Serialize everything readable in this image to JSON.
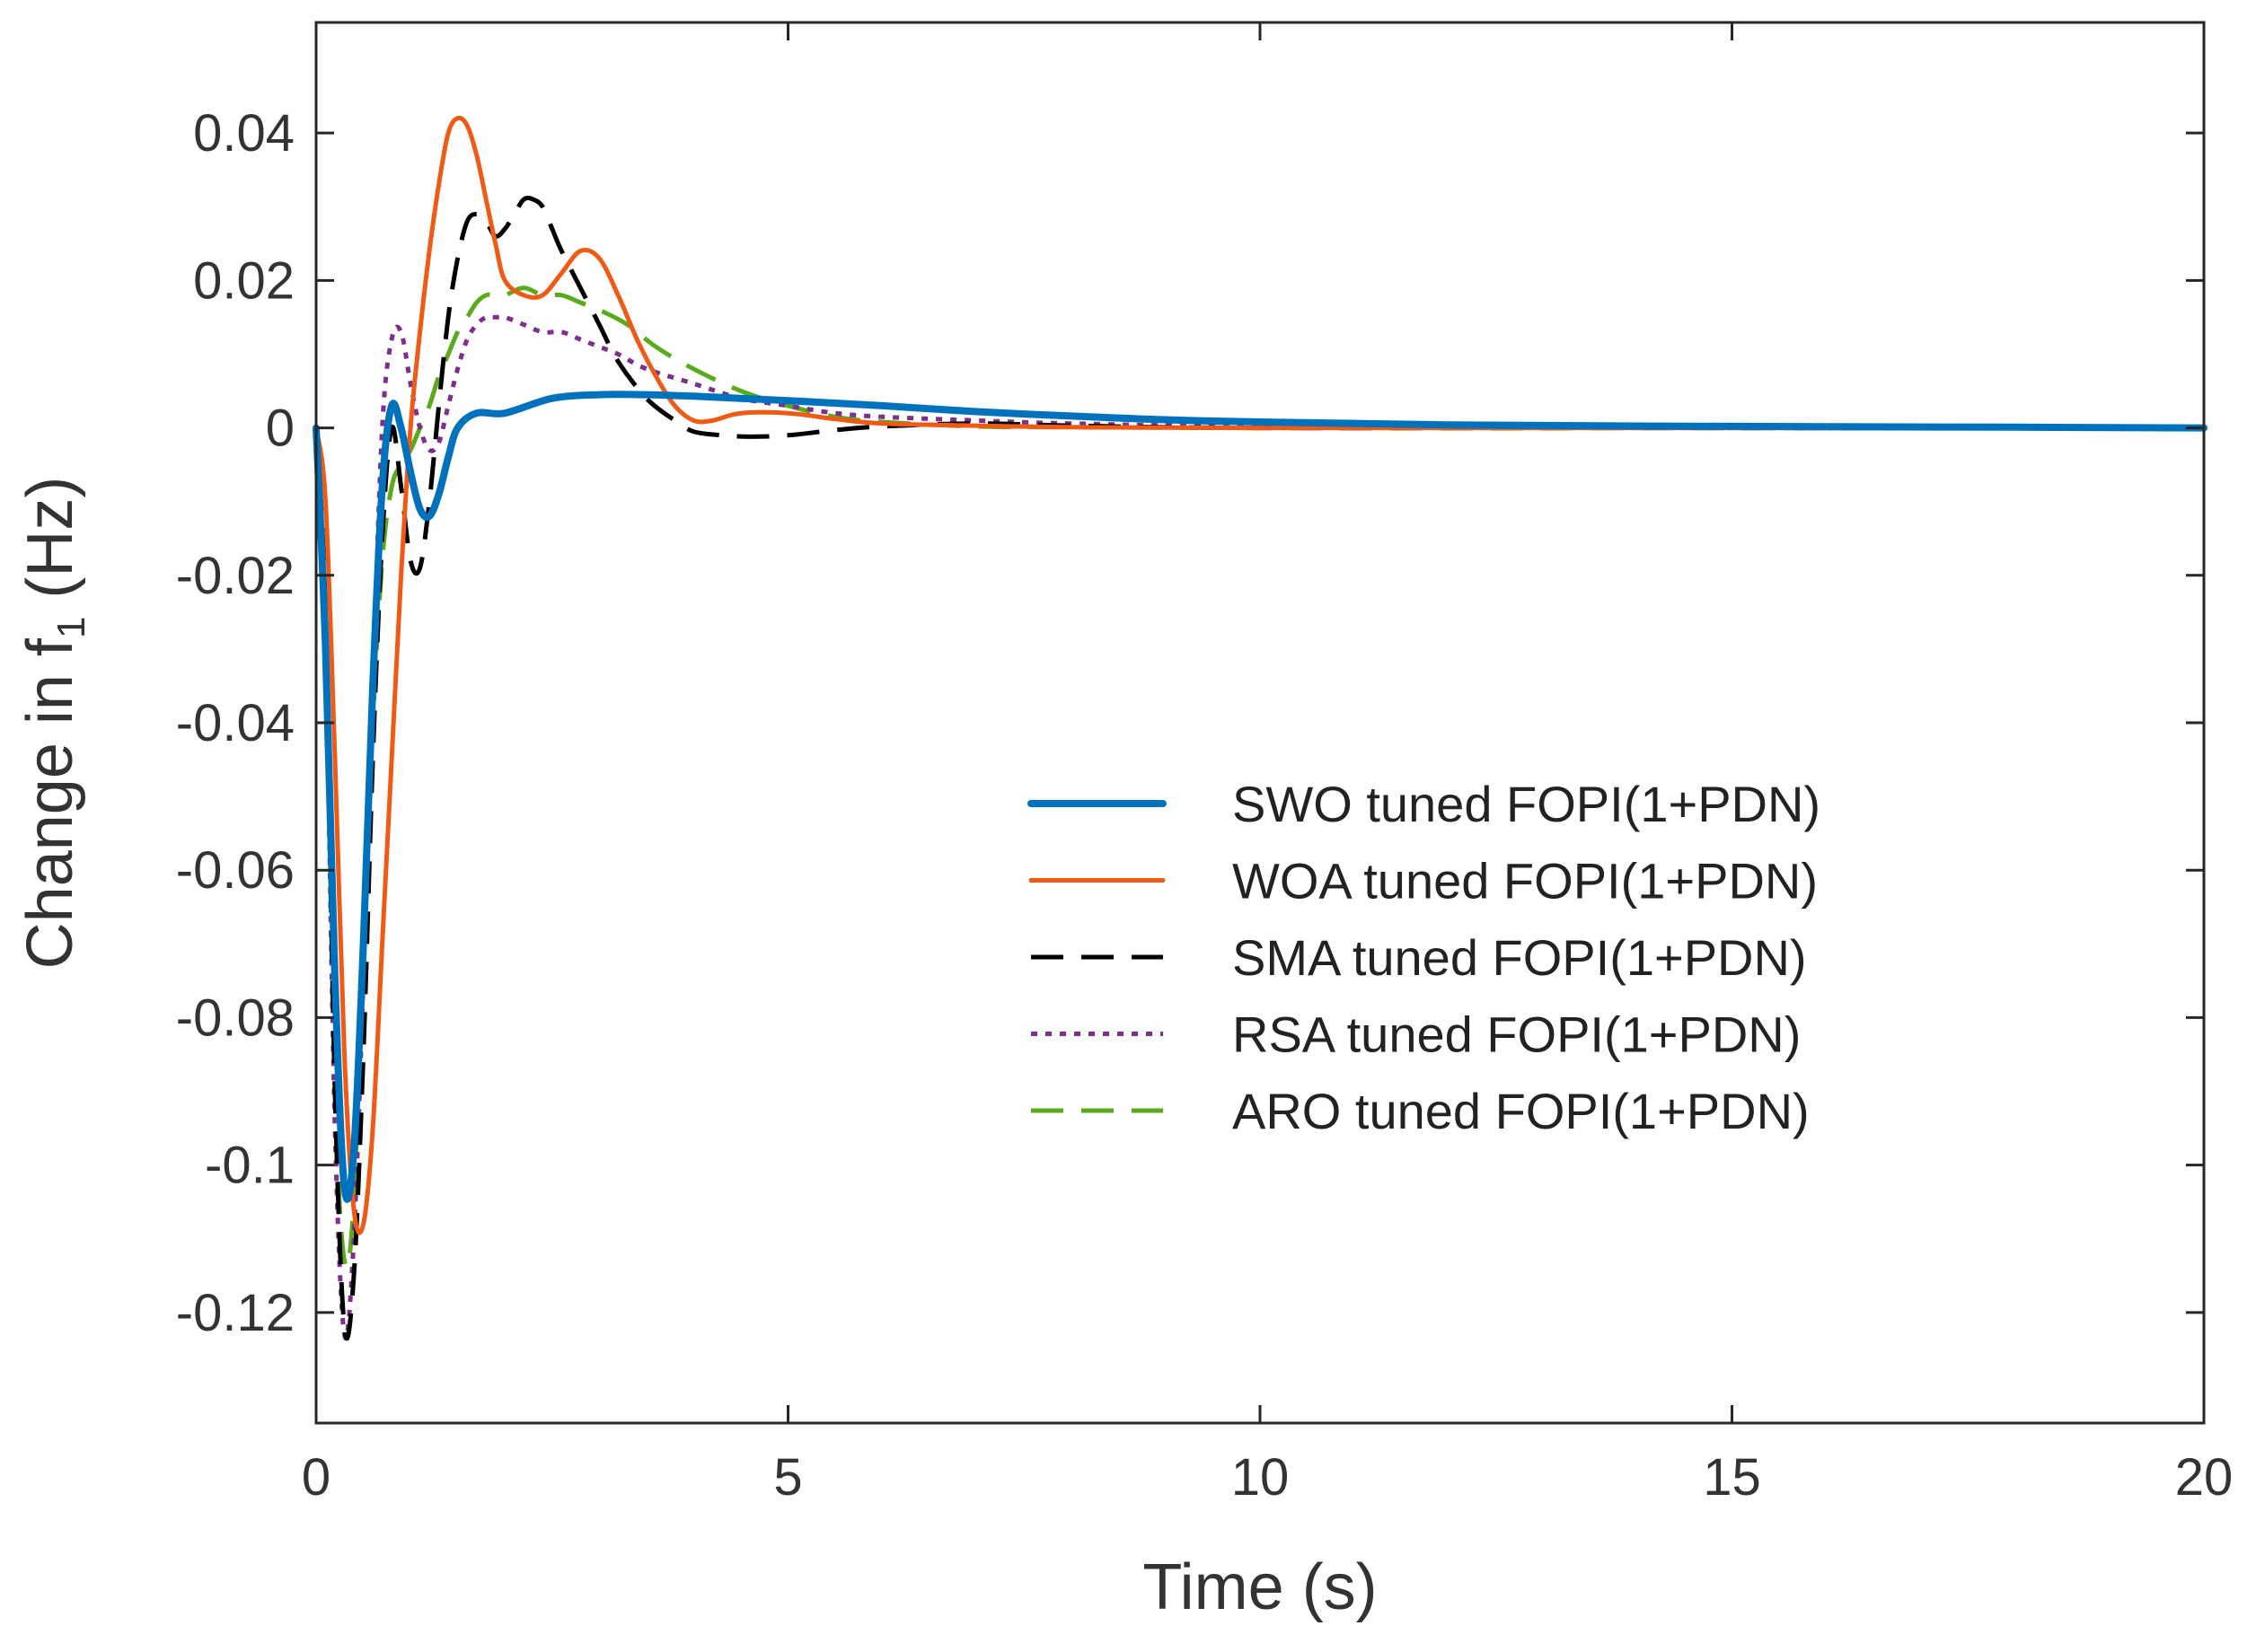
{
  "chart_data": {
    "type": "line",
    "title": "",
    "xlabel": "Time (s)",
    "ylabel_main": "Change in f",
    "ylabel_sub": "1",
    "ylabel_unit": " (Hz)",
    "xlim": [
      0,
      20
    ],
    "ylim": [
      -0.135,
      0.055
    ],
    "xticks": [
      0,
      5,
      10,
      15,
      20
    ],
    "xtick_labels": [
      "0",
      "5",
      "10",
      "15",
      "20"
    ],
    "yticks": [
      0.04,
      0.02,
      0,
      -0.02,
      -0.04,
      -0.06,
      -0.08,
      -0.1,
      -0.12
    ],
    "ytick_labels": [
      "0.04",
      "0.02",
      "0",
      "-0.02",
      "-0.04",
      "-0.06",
      "-0.08",
      "-0.1",
      "-0.12"
    ],
    "grid": false,
    "legend_position": "center-right",
    "series": [
      {
        "name": "SWO tuned FOPI(1+PDN)",
        "color": "#0072BD",
        "style": "solid-thick",
        "x": [
          0,
          0.1,
          0.2,
          0.3,
          0.4,
          0.5,
          0.6,
          0.7,
          0.8,
          0.9,
          1.0,
          1.1,
          1.2,
          1.3,
          1.4,
          1.5,
          1.7,
          2.0,
          2.5,
          3.0,
          3.5,
          4.0,
          4.5,
          5,
          6,
          7,
          8,
          9,
          10,
          12,
          15,
          18,
          20
        ],
        "y": [
          0,
          -0.03,
          -0.075,
          -0.103,
          -0.098,
          -0.07,
          -0.035,
          -0.008,
          0.003,
          0.0,
          -0.006,
          -0.011,
          -0.012,
          -0.009,
          -0.004,
          0.0,
          0.002,
          0.002,
          0.004,
          0.0045,
          0.0045,
          0.0043,
          0.004,
          0.0037,
          0.003,
          0.0022,
          0.0016,
          0.0011,
          0.0008,
          0.0004,
          0.0002,
          0.0001,
          0.0
        ]
      },
      {
        "name": "WOA tuned FOPI(1+PDN)",
        "color": "#F05A14",
        "style": "solid",
        "x": [
          0,
          0.1,
          0.2,
          0.3,
          0.4,
          0.5,
          0.6,
          0.7,
          0.8,
          0.9,
          1.0,
          1.1,
          1.2,
          1.3,
          1.4,
          1.5,
          1.6,
          1.7,
          1.8,
          1.9,
          2.0,
          2.2,
          2.4,
          2.6,
          2.8,
          3.0,
          3.2,
          3.4,
          3.6,
          3.8,
          4.0,
          4.2,
          4.5,
          5,
          5.5,
          6,
          7,
          8,
          10,
          15,
          20
        ],
        "y": [
          0,
          -0.01,
          -0.045,
          -0.085,
          -0.106,
          -0.108,
          -0.095,
          -0.07,
          -0.045,
          -0.02,
          0.0,
          0.013,
          0.024,
          0.033,
          0.04,
          0.042,
          0.041,
          0.037,
          0.031,
          0.025,
          0.02,
          0.018,
          0.018,
          0.021,
          0.024,
          0.023,
          0.018,
          0.012,
          0.007,
          0.003,
          0.001,
          0.001,
          0.002,
          0.002,
          0.0012,
          0.0006,
          0.0003,
          0.0001,
          0,
          0,
          0
        ]
      },
      {
        "name": "SMA tuned FOPI(1+PDN)",
        "color": "#000000",
        "style": "dashed",
        "x": [
          0,
          0.1,
          0.2,
          0.3,
          0.4,
          0.5,
          0.6,
          0.7,
          0.8,
          0.9,
          1.0,
          1.1,
          1.2,
          1.3,
          1.4,
          1.5,
          1.6,
          1.7,
          1.8,
          1.9,
          2.0,
          2.1,
          2.2,
          2.3,
          2.4,
          2.5,
          2.6,
          2.8,
          3.0,
          3.2,
          3.5,
          3.8,
          4.0,
          4.3,
          4.6,
          5,
          5.5,
          6,
          7,
          8,
          10,
          15,
          20
        ],
        "y": [
          0,
          -0.025,
          -0.09,
          -0.122,
          -0.115,
          -0.085,
          -0.045,
          -0.015,
          0.0,
          -0.008,
          -0.018,
          -0.019,
          -0.01,
          0.003,
          0.015,
          0.023,
          0.028,
          0.029,
          0.028,
          0.026,
          0.027,
          0.029,
          0.031,
          0.031,
          0.03,
          0.027,
          0.024,
          0.019,
          0.014,
          0.009,
          0.004,
          0.001,
          -0.0005,
          -0.001,
          -0.0012,
          -0.001,
          -0.0003,
          0.0002,
          0.0006,
          0.0003,
          0,
          0,
          0
        ]
      },
      {
        "name": "RSA tuned FOPI(1+PDN)",
        "color": "#7E2F8E",
        "style": "dotted",
        "x": [
          0,
          0.1,
          0.2,
          0.3,
          0.4,
          0.5,
          0.6,
          0.7,
          0.8,
          0.9,
          1.0,
          1.1,
          1.2,
          1.3,
          1.4,
          1.5,
          1.6,
          1.7,
          1.8,
          1.9,
          2.0,
          2.2,
          2.4,
          2.6,
          2.8,
          3.0,
          3.2,
          3.5,
          4.0,
          4.5,
          5,
          5.5,
          6,
          7,
          8,
          10,
          15,
          20
        ],
        "y": [
          0,
          -0.03,
          -0.095,
          -0.123,
          -0.11,
          -0.075,
          -0.035,
          0.0,
          0.012,
          0.013,
          0.006,
          0.0,
          -0.003,
          -0.002,
          0.003,
          0.008,
          0.012,
          0.014,
          0.015,
          0.015,
          0.015,
          0.014,
          0.013,
          0.013,
          0.012,
          0.011,
          0.01,
          0.008,
          0.006,
          0.004,
          0.003,
          0.002,
          0.0015,
          0.001,
          0.0006,
          0.0002,
          0,
          0
        ]
      },
      {
        "name": "ARO tuned FOPI(1+PDN)",
        "color": "#5AAA1E",
        "style": "dashed",
        "x": [
          0,
          0.1,
          0.2,
          0.3,
          0.4,
          0.5,
          0.6,
          0.7,
          0.8,
          0.9,
          1.0,
          1.1,
          1.2,
          1.3,
          1.4,
          1.5,
          1.6,
          1.7,
          1.8,
          1.9,
          2.0,
          2.2,
          2.4,
          2.6,
          2.8,
          3.0,
          3.3,
          3.6,
          4.0,
          4.5,
          5,
          5.5,
          6,
          7,
          8,
          10,
          15,
          20
        ],
        "y": [
          0,
          -0.03,
          -0.09,
          -0.113,
          -0.105,
          -0.07,
          -0.04,
          -0.018,
          -0.008,
          -0.005,
          -0.003,
          0.0,
          0.003,
          0.007,
          0.01,
          0.013,
          0.015,
          0.017,
          0.018,
          0.018,
          0.018,
          0.019,
          0.018,
          0.018,
          0.017,
          0.016,
          0.014,
          0.011,
          0.008,
          0.005,
          0.003,
          0.0015,
          0.0008,
          0.0002,
          0.0001,
          0,
          0,
          0
        ]
      }
    ]
  }
}
